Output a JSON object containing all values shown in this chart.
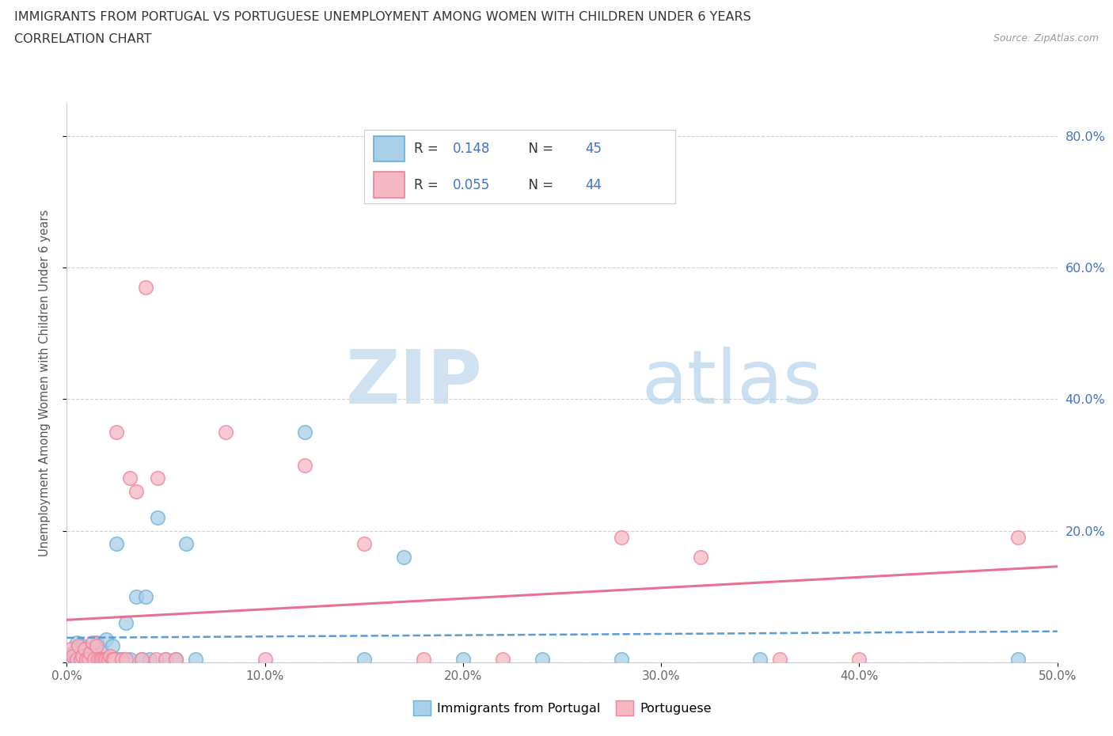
{
  "title": "IMMIGRANTS FROM PORTUGAL VS PORTUGUESE UNEMPLOYMENT AMONG WOMEN WITH CHILDREN UNDER 6 YEARS",
  "subtitle": "CORRELATION CHART",
  "source": "Source: ZipAtlas.com",
  "ylabel": "Unemployment Among Women with Children Under 6 years",
  "xlim": [
    0.0,
    0.5
  ],
  "ylim": [
    0.0,
    0.85
  ],
  "xticks": [
    0.0,
    0.1,
    0.2,
    0.3,
    0.4,
    0.5
  ],
  "xticklabels": [
    "0.0%",
    "10.0%",
    "20.0%",
    "30.0%",
    "40.0%",
    "50.0%"
  ],
  "yticks": [
    0.0,
    0.2,
    0.4,
    0.6,
    0.8
  ],
  "yticklabels_right": [
    "",
    "20.0%",
    "40.0%",
    "60.0%",
    "80.0%"
  ],
  "color_blue": "#A8D0E8",
  "color_pink": "#F5B8C4",
  "edge_blue": "#6BAED6",
  "edge_pink": "#F08098",
  "trendline_blue": "#5B9BD5",
  "trendline_pink": "#E87090",
  "watermark_zip": "ZIP",
  "watermark_atlas": "atlas",
  "scatter_blue": [
    [
      0.002,
      0.005
    ],
    [
      0.003,
      0.015
    ],
    [
      0.004,
      0.01
    ],
    [
      0.005,
      0.02
    ],
    [
      0.005,
      0.03
    ],
    [
      0.006,
      0.005
    ],
    [
      0.007,
      0.01
    ],
    [
      0.008,
      0.025
    ],
    [
      0.009,
      0.005
    ],
    [
      0.01,
      0.005
    ],
    [
      0.01,
      0.02
    ],
    [
      0.011,
      0.015
    ],
    [
      0.012,
      0.005
    ],
    [
      0.012,
      0.01
    ],
    [
      0.013,
      0.005
    ],
    [
      0.014,
      0.01
    ],
    [
      0.015,
      0.03
    ],
    [
      0.016,
      0.005
    ],
    [
      0.017,
      0.02
    ],
    [
      0.018,
      0.005
    ],
    [
      0.02,
      0.035
    ],
    [
      0.022,
      0.005
    ],
    [
      0.023,
      0.025
    ],
    [
      0.025,
      0.18
    ],
    [
      0.026,
      0.005
    ],
    [
      0.028,
      0.005
    ],
    [
      0.03,
      0.06
    ],
    [
      0.032,
      0.005
    ],
    [
      0.035,
      0.1
    ],
    [
      0.038,
      0.005
    ],
    [
      0.04,
      0.1
    ],
    [
      0.042,
      0.005
    ],
    [
      0.046,
      0.22
    ],
    [
      0.05,
      0.005
    ],
    [
      0.055,
      0.005
    ],
    [
      0.06,
      0.18
    ],
    [
      0.065,
      0.005
    ],
    [
      0.12,
      0.35
    ],
    [
      0.15,
      0.005
    ],
    [
      0.17,
      0.16
    ],
    [
      0.2,
      0.005
    ],
    [
      0.24,
      0.005
    ],
    [
      0.28,
      0.005
    ],
    [
      0.35,
      0.005
    ],
    [
      0.48,
      0.005
    ]
  ],
  "scatter_pink": [
    [
      0.002,
      0.02
    ],
    [
      0.003,
      0.01
    ],
    [
      0.005,
      0.005
    ],
    [
      0.006,
      0.025
    ],
    [
      0.007,
      0.005
    ],
    [
      0.008,
      0.01
    ],
    [
      0.009,
      0.02
    ],
    [
      0.01,
      0.005
    ],
    [
      0.011,
      0.005
    ],
    [
      0.012,
      0.015
    ],
    [
      0.013,
      0.03
    ],
    [
      0.014,
      0.005
    ],
    [
      0.015,
      0.025
    ],
    [
      0.016,
      0.005
    ],
    [
      0.017,
      0.005
    ],
    [
      0.018,
      0.005
    ],
    [
      0.019,
      0.005
    ],
    [
      0.02,
      0.005
    ],
    [
      0.021,
      0.005
    ],
    [
      0.022,
      0.01
    ],
    [
      0.023,
      0.005
    ],
    [
      0.024,
      0.005
    ],
    [
      0.025,
      0.35
    ],
    [
      0.028,
      0.005
    ],
    [
      0.03,
      0.005
    ],
    [
      0.032,
      0.28
    ],
    [
      0.035,
      0.26
    ],
    [
      0.038,
      0.005
    ],
    [
      0.04,
      0.57
    ],
    [
      0.045,
      0.005
    ],
    [
      0.046,
      0.28
    ],
    [
      0.05,
      0.005
    ],
    [
      0.055,
      0.005
    ],
    [
      0.08,
      0.35
    ],
    [
      0.1,
      0.005
    ],
    [
      0.12,
      0.3
    ],
    [
      0.15,
      0.18
    ],
    [
      0.18,
      0.005
    ],
    [
      0.22,
      0.005
    ],
    [
      0.28,
      0.19
    ],
    [
      0.32,
      0.16
    ],
    [
      0.36,
      0.005
    ],
    [
      0.4,
      0.005
    ],
    [
      0.48,
      0.19
    ]
  ]
}
